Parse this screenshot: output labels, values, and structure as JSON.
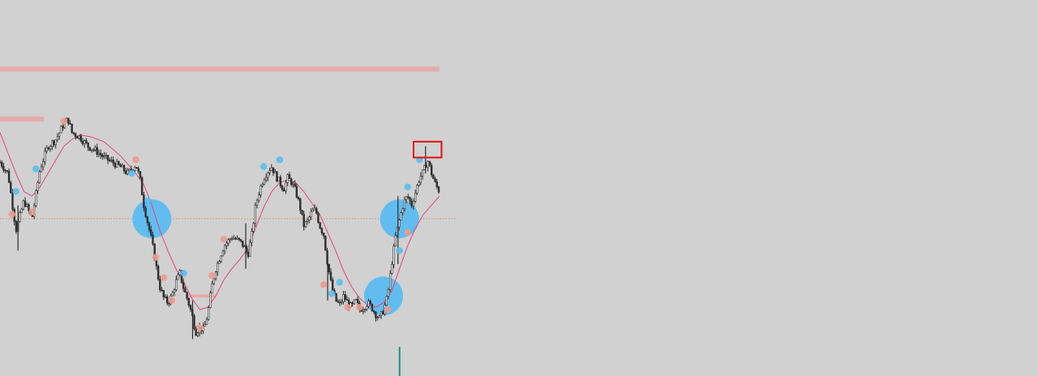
{
  "colors": {
    "background": "#d1d1d1",
    "candle": "#2e2e2e",
    "moving_average": "#e0457b",
    "zone": "#e5a6a6",
    "bubble_buy": "#5bbcf0",
    "bubble_sell": "#ee9a8c",
    "highlight_box": "#e01010",
    "current_price_line": "#d98a74",
    "marker": "#1f8f8a"
  },
  "chart_data": {
    "type": "candlestick",
    "title": "",
    "xlabel": "",
    "ylabel": "",
    "grid": false,
    "legend": "none",
    "x_range": [
      0,
      110
    ],
    "y_range": [
      0,
      100
    ],
    "close_path": [
      [
        0,
        75
      ],
      [
        2,
        70
      ],
      [
        4,
        45
      ],
      [
        6,
        58
      ],
      [
        8,
        50
      ],
      [
        10,
        72
      ],
      [
        12,
        82
      ],
      [
        14,
        85
      ],
      [
        16,
        92
      ],
      [
        17,
        94
      ],
      [
        18,
        88
      ],
      [
        20,
        86
      ],
      [
        22,
        82
      ],
      [
        24,
        80
      ],
      [
        26,
        77
      ],
      [
        28,
        75
      ],
      [
        30,
        73
      ],
      [
        32,
        70
      ],
      [
        34,
        74
      ],
      [
        35,
        68
      ],
      [
        36,
        56
      ],
      [
        37,
        48
      ],
      [
        38,
        40
      ],
      [
        39,
        30
      ],
      [
        40,
        20
      ],
      [
        41,
        15
      ],
      [
        42,
        13
      ],
      [
        43,
        16
      ],
      [
        44,
        22
      ],
      [
        45,
        26
      ],
      [
        46,
        19
      ],
      [
        47,
        14
      ],
      [
        48,
        8
      ],
      [
        49,
        0
      ],
      [
        50,
        2
      ],
      [
        51,
        1
      ],
      [
        52,
        8
      ],
      [
        53,
        20
      ],
      [
        54,
        28
      ],
      [
        56,
        38
      ],
      [
        58,
        42
      ],
      [
        60,
        40
      ],
      [
        61,
        38
      ],
      [
        62,
        34
      ],
      [
        63,
        43
      ],
      [
        64,
        56
      ],
      [
        65,
        63
      ],
      [
        66,
        68
      ],
      [
        67,
        71
      ],
      [
        68,
        73
      ],
      [
        69,
        69
      ],
      [
        70,
        66
      ],
      [
        71,
        63
      ],
      [
        72,
        68
      ],
      [
        73,
        66
      ],
      [
        74,
        62
      ],
      [
        75,
        56
      ],
      [
        76,
        47
      ],
      [
        77,
        49
      ],
      [
        78,
        53
      ],
      [
        79,
        54
      ],
      [
        80,
        47
      ],
      [
        81,
        43
      ],
      [
        82,
        30
      ],
      [
        83,
        20
      ],
      [
        84,
        14
      ],
      [
        85,
        12
      ],
      [
        86,
        16
      ],
      [
        87,
        13
      ],
      [
        88,
        11
      ],
      [
        89,
        14
      ],
      [
        90,
        10
      ],
      [
        91,
        11
      ],
      [
        92,
        13
      ],
      [
        93,
        11
      ],
      [
        94,
        8
      ],
      [
        95,
        6
      ],
      [
        96,
        10
      ],
      [
        97,
        16
      ],
      [
        98,
        30
      ],
      [
        99,
        42
      ],
      [
        100,
        50
      ],
      [
        101,
        57
      ],
      [
        102,
        60
      ],
      [
        103,
        56
      ],
      [
        104,
        62
      ],
      [
        105,
        68
      ],
      [
        106,
        71
      ],
      [
        107,
        76
      ],
      [
        108,
        70
      ],
      [
        109,
        65
      ],
      [
        110,
        62
      ]
    ],
    "moving_average_path": [
      [
        0,
        88
      ],
      [
        4,
        70
      ],
      [
        6,
        62
      ],
      [
        8,
        60
      ],
      [
        10,
        64
      ],
      [
        12,
        70
      ],
      [
        14,
        76
      ],
      [
        16,
        82
      ],
      [
        18,
        85
      ],
      [
        20,
        87
      ],
      [
        23,
        86
      ],
      [
        26,
        84
      ],
      [
        28,
        81
      ],
      [
        30,
        78
      ],
      [
        32,
        74
      ],
      [
        34,
        70
      ],
      [
        36,
        65
      ],
      [
        38,
        56
      ],
      [
        40,
        45
      ],
      [
        42,
        36
      ],
      [
        44,
        28
      ],
      [
        46,
        22
      ],
      [
        48,
        15
      ],
      [
        50,
        10
      ],
      [
        52,
        11
      ],
      [
        54,
        16
      ],
      [
        56,
        23
      ],
      [
        58,
        28
      ],
      [
        60,
        32
      ],
      [
        62,
        37
      ],
      [
        64,
        46
      ],
      [
        66,
        55
      ],
      [
        68,
        62
      ],
      [
        70,
        66
      ],
      [
        72,
        67
      ],
      [
        74,
        66
      ],
      [
        76,
        62
      ],
      [
        78,
        57
      ],
      [
        80,
        52
      ],
      [
        82,
        44
      ],
      [
        84,
        36
      ],
      [
        86,
        27
      ],
      [
        88,
        20
      ],
      [
        90,
        15
      ],
      [
        92,
        12
      ],
      [
        94,
        11
      ],
      [
        96,
        13
      ],
      [
        98,
        18
      ],
      [
        100,
        28
      ],
      [
        102,
        38
      ],
      [
        104,
        46
      ],
      [
        106,
        52
      ],
      [
        108,
        56
      ],
      [
        110,
        60
      ]
    ],
    "current_price": 50,
    "resistance_zones": [
      {
        "x_start": 0,
        "x_end": 110,
        "y": 116
      },
      {
        "x_start": 0,
        "x_end": 11,
        "y": 94
      }
    ],
    "support_zones": [
      {
        "x_start": 47,
        "x_end": 54,
        "y": 16
      }
    ],
    "volume_bubbles": [
      {
        "x": 38,
        "y": 50,
        "size": "large",
        "side": "buy"
      },
      {
        "x": 100,
        "y": 50,
        "size": "large",
        "side": "buy"
      },
      {
        "x": 96,
        "y": 16,
        "size": "large",
        "side": "buy"
      },
      {
        "x": 37,
        "y": 58,
        "size": "small",
        "side": "buy"
      },
      {
        "x": 33,
        "y": 70,
        "size": "small",
        "side": "buy"
      },
      {
        "x": 9,
        "y": 72,
        "size": "small",
        "side": "buy"
      },
      {
        "x": 4,
        "y": 62,
        "size": "small",
        "side": "buy"
      },
      {
        "x": 46,
        "y": 26,
        "size": "small",
        "side": "buy"
      },
      {
        "x": 70,
        "y": 76,
        "size": "small",
        "side": "buy"
      },
      {
        "x": 66,
        "y": 73,
        "size": "small",
        "side": "buy"
      },
      {
        "x": 85,
        "y": 22,
        "size": "small",
        "side": "buy"
      },
      {
        "x": 83,
        "y": 17,
        "size": "small",
        "side": "buy"
      },
      {
        "x": 102,
        "y": 64,
        "size": "small",
        "side": "buy"
      },
      {
        "x": 105,
        "y": 76,
        "size": "small",
        "side": "buy"
      },
      {
        "x": 100,
        "y": 36,
        "size": "small",
        "side": "buy"
      },
      {
        "x": 3,
        "y": 52,
        "size": "small",
        "side": "sell"
      },
      {
        "x": 8,
        "y": 53,
        "size": "small",
        "side": "sell"
      },
      {
        "x": 16,
        "y": 93,
        "size": "small",
        "side": "sell"
      },
      {
        "x": 34,
        "y": 76,
        "size": "small",
        "side": "sell"
      },
      {
        "x": 39,
        "y": 33,
        "size": "small",
        "side": "sell"
      },
      {
        "x": 41,
        "y": 24,
        "size": "small",
        "side": "sell"
      },
      {
        "x": 43,
        "y": 14,
        "size": "small",
        "side": "sell"
      },
      {
        "x": 50,
        "y": 2,
        "size": "small",
        "side": "sell"
      },
      {
        "x": 53,
        "y": 25,
        "size": "small",
        "side": "sell"
      },
      {
        "x": 56,
        "y": 41,
        "size": "small",
        "side": "sell"
      },
      {
        "x": 81,
        "y": 21,
        "size": "small",
        "side": "sell"
      },
      {
        "x": 87,
        "y": 11,
        "size": "small",
        "side": "sell"
      },
      {
        "x": 90,
        "y": 11,
        "size": "small",
        "side": "sell"
      },
      {
        "x": 97,
        "y": 10,
        "size": "small",
        "side": "sell"
      },
      {
        "x": 102,
        "y": 44,
        "size": "small",
        "side": "sell"
      }
    ],
    "highlight_box": {
      "x_start": 103.5,
      "x_end": 110.5,
      "y_low": 77,
      "y_high": 84
    },
    "time_marker_x": 100
  }
}
